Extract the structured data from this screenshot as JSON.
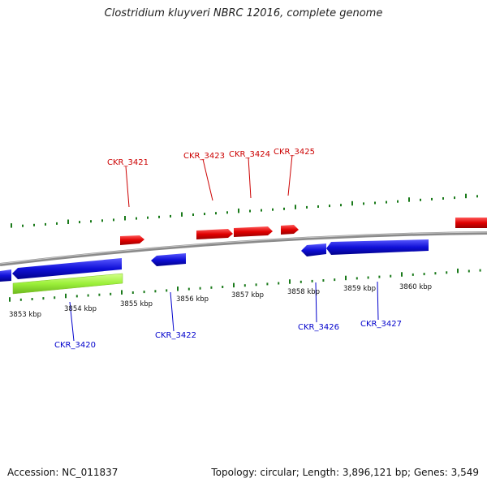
{
  "title": "Clostridium kluyveri NBRC 12016, complete genome",
  "accession": "Accession: NC_011837",
  "summary": "Topology: circular; Length: 3,896,121 bp; Genes: 3,549",
  "colors": {
    "forward_gene": "#e00000",
    "reverse_gene": "#1010d8",
    "rna_feature": "#9cf03a",
    "tick": "#1a7a1a",
    "backbone": "#808080"
  },
  "kbp_labels": [
    "3853 kbp",
    "3854 kbp",
    "3855 kbp",
    "3856 kbp",
    "3857 kbp",
    "3858 kbp",
    "3859 kbp",
    "3860 kbp"
  ],
  "forward_labels": [
    "CKR_3421",
    "CKR_3423",
    "CKR_3424",
    "CKR_3425"
  ],
  "reverse_labels": [
    "CKR_3420",
    "CKR_3422",
    "CKR_3426",
    "CKR_3427"
  ]
}
